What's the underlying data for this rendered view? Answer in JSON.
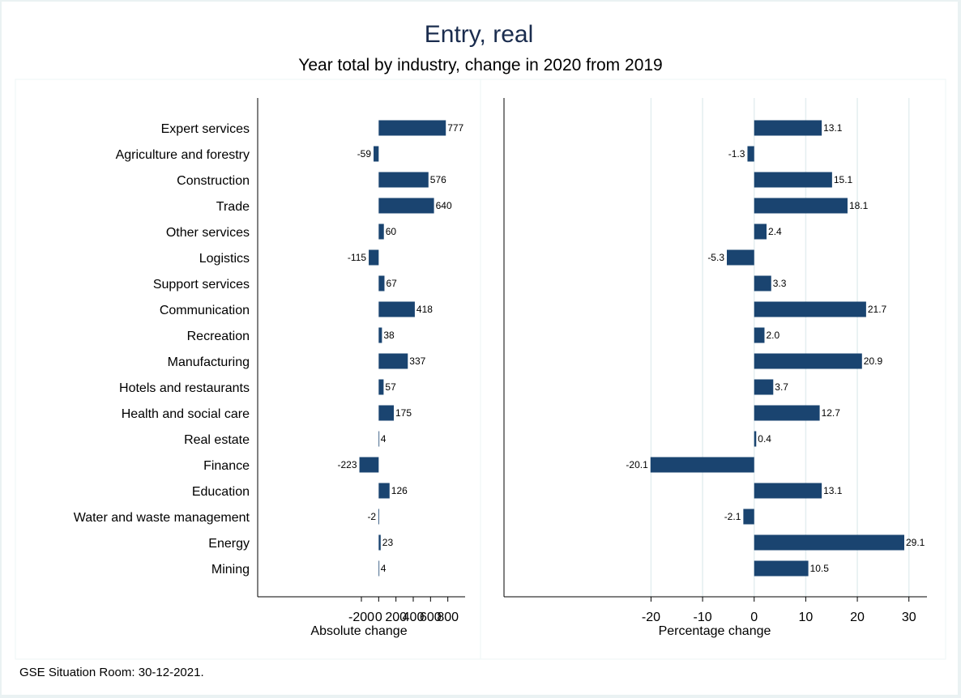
{
  "title": "Entry, real",
  "subtitle": "Year total by industry, change in 2020 from 2019",
  "note": "GSE Situation Room: 30-12-2021.",
  "bar_color": "#1a4470",
  "chart_data": [
    {
      "type": "bar",
      "orientation": "horizontal",
      "xlabel": "Absolute change",
      "xticks": [
        -200,
        0,
        200,
        400,
        600,
        800
      ],
      "xtick_labels": [
        "-200",
        "0",
        "200",
        "400",
        "600",
        "800"
      ],
      "xlim": [
        -1400,
        1000
      ],
      "grid": false,
      "categories": [
        "Expert services",
        "Agriculture and forestry",
        "Construction",
        "Trade",
        "Other services",
        "Logistics",
        "Support services",
        "Communication",
        "Recreation",
        "Manufacturing",
        "Hotels and restaurants",
        "Health and social care",
        "Real estate",
        "Finance",
        "Education",
        "Water and waste management",
        "Energy",
        "Mining"
      ],
      "values": [
        777,
        -59,
        576,
        640,
        60,
        -115,
        67,
        418,
        38,
        337,
        57,
        175,
        4,
        -223,
        126,
        -2,
        23,
        4
      ],
      "value_labels": [
        "777",
        "-59",
        "576",
        "640",
        "60",
        "-115",
        "67",
        "418",
        "38",
        "337",
        "57",
        "175",
        "4",
        "-223",
        "126",
        "-2",
        "23",
        "4"
      ]
    },
    {
      "type": "bar",
      "orientation": "horizontal",
      "xlabel": "Percentage change",
      "xticks": [
        -20,
        -10,
        0,
        10,
        20,
        30
      ],
      "xtick_labels": [
        "-20",
        "-10",
        "0",
        "10",
        "20",
        "30"
      ],
      "xlim": [
        -48.5,
        33.5
      ],
      "grid": true,
      "categories": [
        "Expert services",
        "Agriculture and forestry",
        "Construction",
        "Trade",
        "Other services",
        "Logistics",
        "Support services",
        "Communication",
        "Recreation",
        "Manufacturing",
        "Hotels and restaurants",
        "Health and social care",
        "Real estate",
        "Finance",
        "Education",
        "Water and waste management",
        "Energy",
        "Mining"
      ],
      "values": [
        13.1,
        -1.3,
        15.1,
        18.1,
        2.4,
        -5.3,
        3.3,
        21.7,
        2.0,
        20.9,
        3.7,
        12.7,
        0.4,
        -20.1,
        13.1,
        -2.1,
        29.1,
        10.5
      ],
      "value_labels": [
        "13.1",
        "-1.3",
        "15.1",
        "18.1",
        "2.4",
        "-5.3",
        "3.3",
        "21.7",
        "2.0",
        "20.9",
        "3.7",
        "12.7",
        "0.4",
        "-20.1",
        "13.1",
        "-2.1",
        "29.1",
        "10.5"
      ]
    }
  ]
}
